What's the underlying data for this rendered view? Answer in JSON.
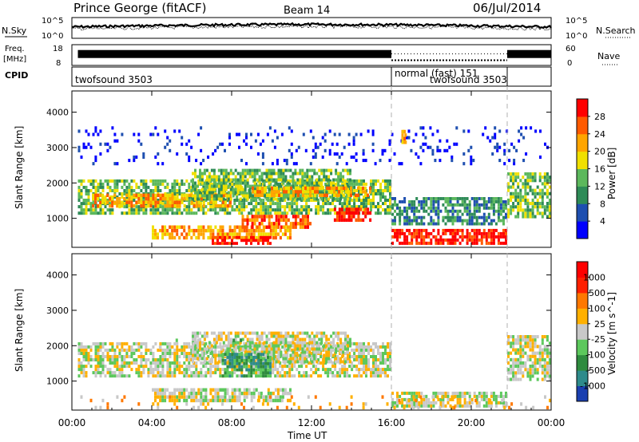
{
  "chart_data": {
    "type": "heatmap",
    "title": "Prince George (fitACF)",
    "beam": "Beam 14",
    "date": "06/Jul/2014",
    "xlabel": "Time UT",
    "x_ticks": [
      "00:00",
      "04:00",
      "08:00",
      "12:00",
      "16:00",
      "20:00",
      "00:00"
    ],
    "xlim_hours": [
      0,
      24
    ],
    "top_panels": {
      "noise": {
        "left_label": "N.Sky",
        "left_ticks": [
          "10^5",
          "10^0"
        ],
        "right_label": "N.Search",
        "right_ticks": [
          "10^5",
          "10^0"
        ],
        "series": [
          {
            "name": "N.Sky",
            "style": "solid",
            "level": 0.55
          },
          {
            "name": "N.Search",
            "style": "dotted",
            "level": 0.45
          }
        ]
      },
      "freq": {
        "left_label_1": "Freq.",
        "left_label_2": "[MHz]",
        "left_ticks": [
          "18",
          "8"
        ],
        "right_ticks": [
          "60",
          "0"
        ],
        "right_label": "Nave",
        "series": [
          {
            "name": "Freq.",
            "segments": [
              {
                "from": 0.3,
                "to": 16.0,
                "level": 0.55
              },
              {
                "from": 21.8,
                "to": 24.0,
                "level": 0.55
              }
            ]
          },
          {
            "name": "Nave",
            "segments": [
              {
                "from": 16.0,
                "to": 21.8,
                "level": 0.25
              }
            ]
          }
        ]
      },
      "cpid": {
        "label": "CPID",
        "segments": [
          {
            "from": 0.0,
            "to": 16.0,
            "name": "twofsound 3503"
          },
          {
            "from": 16.0,
            "to": 21.8,
            "name": "normal (fast) 151"
          },
          {
            "from": 16.0,
            "to": 21.8,
            "name": "twofsound 3503",
            "row": 2
          }
        ]
      }
    },
    "power_panel": {
      "ylabel": "Slant Range [km]",
      "y_ticks": [
        1000,
        2000,
        3000,
        4000
      ],
      "ylim": [
        180,
        4600
      ],
      "colorbar_label": "Power [dB]",
      "colorbar_ticks": [
        "28",
        "24",
        "20",
        "16",
        "12",
        "8",
        "4"
      ],
      "colors": [
        "#0000ff",
        "#1e4fb0",
        "#2e8b57",
        "#5cb85c",
        "#f0e000",
        "#ffa500",
        "#ff5a00",
        "#ff0000"
      ],
      "bands": [
        {
          "from": 0.3,
          "to": 16.0,
          "low": 1100,
          "high": 2100,
          "level": 3
        },
        {
          "from": 1.0,
          "to": 8.0,
          "low": 1300,
          "high": 1700,
          "level": 5
        },
        {
          "from": 6.0,
          "to": 14.0,
          "low": 1500,
          "high": 2400,
          "level": 3
        },
        {
          "from": 9.0,
          "to": 15.0,
          "low": 1600,
          "high": 1900,
          "level": 5
        },
        {
          "from": 4.0,
          "to": 11.0,
          "low": 400,
          "high": 800,
          "level": 5
        },
        {
          "from": 7.0,
          "to": 10.0,
          "low": 250,
          "high": 500,
          "level": 7
        },
        {
          "from": 8.5,
          "to": 12.0,
          "low": 700,
          "high": 1100,
          "level": 6
        },
        {
          "from": 13.0,
          "to": 15.0,
          "low": 900,
          "high": 1300,
          "level": 7
        },
        {
          "from": 16.0,
          "to": 21.8,
          "low": 250,
          "high": 700,
          "level": 7
        },
        {
          "from": 16.0,
          "to": 21.8,
          "low": 800,
          "high": 1600,
          "level": 2
        },
        {
          "from": 21.8,
          "to": 24.0,
          "low": 1000,
          "high": 2300,
          "level": 3
        },
        {
          "from": 0.3,
          "to": 24.0,
          "low": 2500,
          "high": 3600,
          "level": 0,
          "sparse": true
        },
        {
          "from": 16.5,
          "to": 16.7,
          "low": 3100,
          "high": 3500,
          "level": 5
        }
      ]
    },
    "velocity_panel": {
      "ylabel": "Slant Range [km]",
      "y_ticks": [
        1000,
        2000,
        3000,
        4000
      ],
      "ylim": [
        180,
        4600
      ],
      "colorbar_label": "Velocity [m s^-1]",
      "colorbar_ticks": [
        "1000",
        "500",
        "100",
        "25",
        "-25",
        "-100",
        "-500",
        "-1000"
      ],
      "colors": [
        "#1a3fb0",
        "#2e8b8b",
        "#2e8b3e",
        "#5cc85c",
        "#c8c8c8",
        "#ffb000",
        "#ff7800",
        "#ff2000",
        "#ff0000"
      ],
      "bands": [
        {
          "from": 0.3,
          "to": 16.0,
          "low": 1100,
          "high": 2100,
          "level": 4
        },
        {
          "from": 4.0,
          "to": 11.0,
          "low": 400,
          "high": 800,
          "level": 4
        },
        {
          "from": 6.0,
          "to": 14.0,
          "low": 1500,
          "high": 2400,
          "level": 4
        },
        {
          "from": 7.5,
          "to": 10.0,
          "low": 1100,
          "high": 1800,
          "level": 2
        },
        {
          "from": 16.0,
          "to": 21.8,
          "low": 250,
          "high": 700,
          "level": 4
        },
        {
          "from": 21.8,
          "to": 24.0,
          "low": 1000,
          "high": 2300,
          "level": 4
        },
        {
          "from": 4.0,
          "to": 9.0,
          "low": 1900,
          "high": 2200,
          "level": 3,
          "sparse": true
        },
        {
          "from": 0.3,
          "to": 24.0,
          "low": 200,
          "high": 600,
          "level": 5,
          "sparse": true
        }
      ]
    },
    "dashed_markers_hours": [
      16.0,
      21.8
    ]
  }
}
